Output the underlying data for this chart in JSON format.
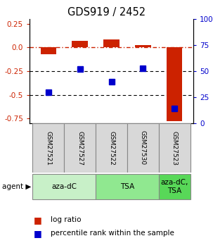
{
  "title": "GDS919 / 2452",
  "samples": [
    "GSM27521",
    "GSM27527",
    "GSM27522",
    "GSM27530",
    "GSM27523"
  ],
  "log_ratios": [
    -0.072,
    0.068,
    0.082,
    0.028,
    -0.775
  ],
  "percentile_ranks": [
    30,
    52,
    40,
    53,
    14
  ],
  "ylim_left": [
    -0.8,
    0.3
  ],
  "ylim_right": [
    0,
    100
  ],
  "left_ticks": [
    0.25,
    0.0,
    -0.25,
    -0.5,
    -0.75
  ],
  "right_ticks": [
    100,
    75,
    50,
    25,
    0
  ],
  "agent_groups": [
    {
      "label": "aza-dC",
      "span": [
        0,
        1
      ],
      "color": "#c8f0c8"
    },
    {
      "label": "TSA",
      "span": [
        2,
        3
      ],
      "color": "#90e890"
    },
    {
      "label": "aza-dC,\nTSA",
      "span": [
        4,
        4
      ],
      "color": "#58d858"
    }
  ],
  "bar_color": "#cc2200",
  "dot_color": "#0000cc",
  "background_color": "#ffffff",
  "hline_red_style": "-.",
  "hline_black_style": ":",
  "bar_width": 0.5
}
